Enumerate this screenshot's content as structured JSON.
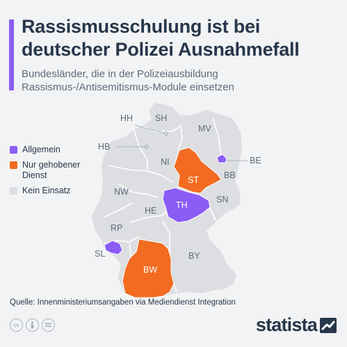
{
  "header": {
    "title": "Rassismusschulung ist bei deutscher Polizei Ausnahmefall",
    "subtitle": "Bundesländer, die in der Polizeiausbildung Rassismus-/Antisemitismus-Module einsetzen"
  },
  "legend": [
    {
      "label": "Allgemein",
      "color": "#8b5cf6"
    },
    {
      "label": "Nur gehobener Dienst",
      "color": "#f26b21"
    },
    {
      "label": "Kein Einsatz",
      "color": "#dcdee1"
    }
  ],
  "states": {
    "SH": {
      "label": "SH",
      "category": "Kein Einsatz"
    },
    "HH": {
      "label": "HH",
      "category": "Kein Einsatz"
    },
    "MV": {
      "label": "MV",
      "category": "Kein Einsatz"
    },
    "HB": {
      "label": "HB",
      "category": "Kein Einsatz"
    },
    "NI": {
      "label": "NI",
      "category": "Kein Einsatz"
    },
    "BE": {
      "label": "BE",
      "category": "Allgemein"
    },
    "BB": {
      "label": "BB",
      "category": "Kein Einsatz"
    },
    "ST": {
      "label": "ST",
      "category": "Nur gehobener Dienst"
    },
    "NW": {
      "label": "NW",
      "category": "Kein Einsatz"
    },
    "SN": {
      "label": "SN",
      "category": "Kein Einsatz"
    },
    "TH": {
      "label": "TH",
      "category": "Allgemein"
    },
    "HE": {
      "label": "HE",
      "category": "Kein Einsatz"
    },
    "RP": {
      "label": "RP",
      "category": "Kein Einsatz"
    },
    "SL": {
      "label": "SL",
      "category": "Allgemein"
    },
    "BW": {
      "label": "BW",
      "category": "Nur gehobener Dienst"
    },
    "BY": {
      "label": "BY",
      "category": "Kein Einsatz"
    }
  },
  "colors": {
    "accent": "#8b5cf6",
    "allgemein": "#8b5cf6",
    "gehoben": "#f26b21",
    "kein": "#dcdee1",
    "text": "#27364a"
  },
  "footer": {
    "source": "Quelle: Innenministeriumsangaben via Mediendienst Integration",
    "brand": "statista",
    "icons": [
      "cc-icon",
      "by-icon",
      "nd-icon"
    ]
  }
}
